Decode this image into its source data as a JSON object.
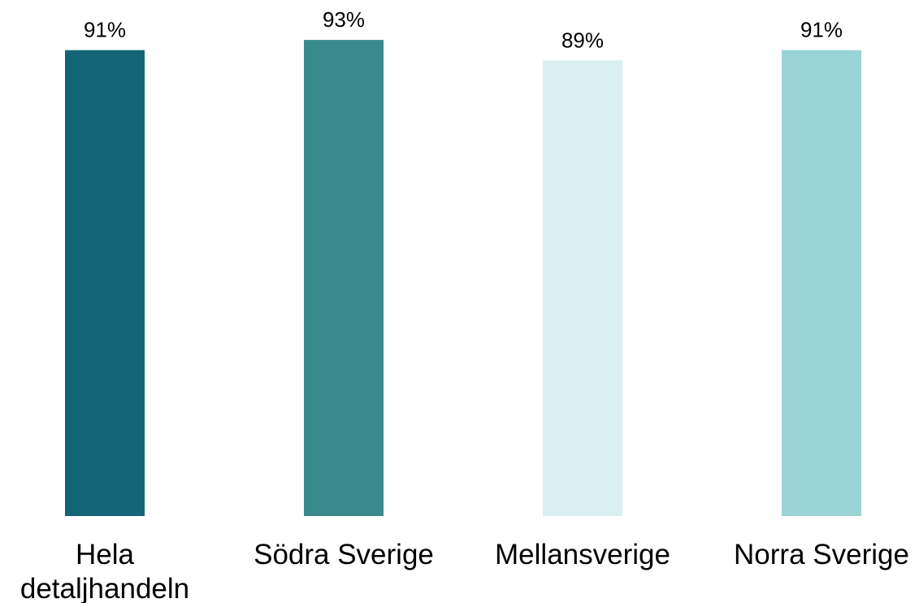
{
  "chart_data": {
    "type": "bar",
    "categories": [
      "Hela detaljhandeln",
      "Södra Sverige",
      "Mellansverige",
      "Norra Sverige"
    ],
    "values": [
      91,
      93,
      89,
      91
    ],
    "value_labels": [
      "91%",
      "93%",
      "89%",
      "91%"
    ],
    "colors": [
      "#136475",
      "#3a8a8b",
      "#daeff1",
      "#98d4d5"
    ],
    "ylim": [
      0,
      100
    ]
  }
}
